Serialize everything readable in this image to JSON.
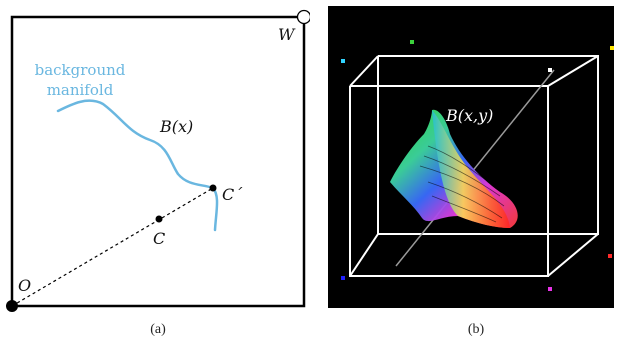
{
  "panel_a": {
    "labels": {
      "manifold_text_line1": "background",
      "manifold_text_line2": "manifold",
      "curve_label": "B(x)",
      "point_c": "C",
      "point_c_prime": "C´",
      "origin": "O",
      "white_point": "W"
    },
    "caption": "(a)",
    "colors": {
      "frame": "#000000",
      "manifold": "#6ab7e0",
      "manifold_text": "#6ab7e0",
      "points": "#000000"
    }
  },
  "panel_b": {
    "labels": {
      "surface_label": "B(x,y)"
    },
    "caption": "(b)",
    "colors": {
      "background": "#000000",
      "cube": "#ffffff",
      "diagonal": "#9a9a9a",
      "corner_markers": [
        "#31d4ff",
        "#3cd23c",
        "#ffe600",
        "#ffffff",
        "#2222ff",
        "#ff2a2a",
        "#e833e8"
      ]
    }
  }
}
